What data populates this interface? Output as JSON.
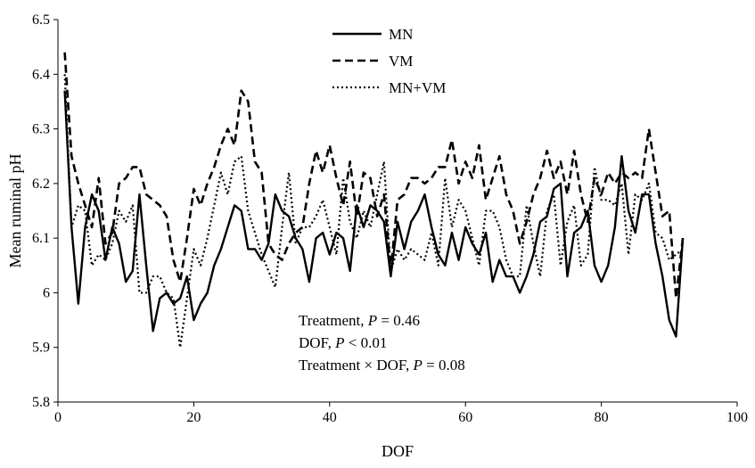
{
  "chart_data": {
    "type": "line",
    "title": "",
    "xlabel": "DOF",
    "ylabel": "Mean ruminal pH",
    "xlim": [
      0,
      100
    ],
    "ylim": [
      5.8,
      6.5
    ],
    "xticks": [
      0,
      20,
      40,
      60,
      80,
      100
    ],
    "yticks": [
      5.8,
      5.9,
      6,
      6.1,
      6.2,
      6.3,
      6.4,
      6.5
    ],
    "xtick_labels": [
      "0",
      "20",
      "40",
      "60",
      "80",
      "100"
    ],
    "ytick_labels": [
      "5.8",
      "5.9",
      "6",
      "6.1",
      "6.2",
      "6.3",
      "6.4",
      "6.5"
    ],
    "grid": false,
    "legend_position": "top-center",
    "x": [
      1,
      2,
      3,
      4,
      5,
      6,
      7,
      8,
      9,
      10,
      11,
      12,
      13,
      14,
      15,
      16,
      17,
      18,
      19,
      20,
      21,
      22,
      23,
      24,
      25,
      26,
      27,
      28,
      29,
      30,
      31,
      32,
      33,
      34,
      35,
      36,
      37,
      38,
      39,
      40,
      41,
      42,
      43,
      44,
      45,
      46,
      47,
      48,
      49,
      50,
      51,
      52,
      53,
      54,
      55,
      56,
      57,
      58,
      59,
      60,
      61,
      62,
      63,
      64,
      65,
      66,
      67,
      68,
      69,
      70,
      71,
      72,
      73,
      74,
      75,
      76,
      77,
      78,
      79,
      80,
      81,
      82,
      83,
      84,
      85,
      86,
      87,
      88,
      89,
      90,
      91,
      92
    ],
    "series": [
      {
        "name": "MN",
        "line_style": "solid",
        "values": [
          6.37,
          6.12,
          5.98,
          6.12,
          6.18,
          6.15,
          6.06,
          6.12,
          6.09,
          6.02,
          6.04,
          6.18,
          6.05,
          5.93,
          5.99,
          6.0,
          5.98,
          5.99,
          6.03,
          5.95,
          5.98,
          6.0,
          6.05,
          6.08,
          6.12,
          6.16,
          6.15,
          6.08,
          6.08,
          6.06,
          6.09,
          6.18,
          6.15,
          6.14,
          6.1,
          6.08,
          6.02,
          6.1,
          6.11,
          6.07,
          6.11,
          6.1,
          6.04,
          6.16,
          6.12,
          6.16,
          6.15,
          6.13,
          6.03,
          6.13,
          6.08,
          6.13,
          6.15,
          6.18,
          6.12,
          6.07,
          6.05,
          6.11,
          6.06,
          6.12,
          6.09,
          6.07,
          6.11,
          6.02,
          6.06,
          6.03,
          6.03,
          6.0,
          6.03,
          6.07,
          6.13,
          6.14,
          6.19,
          6.2,
          6.03,
          6.11,
          6.12,
          6.15,
          6.05,
          6.02,
          6.05,
          6.12,
          6.25,
          6.15,
          6.11,
          6.18,
          6.18,
          6.09,
          6.03,
          5.95,
          5.92,
          6.1
        ]
      },
      {
        "name": "VM",
        "line_style": "dashed",
        "values": [
          6.44,
          6.25,
          6.2,
          6.16,
          6.12,
          6.21,
          6.09,
          6.11,
          6.2,
          6.21,
          6.23,
          6.23,
          6.18,
          6.17,
          6.16,
          6.14,
          6.06,
          6.02,
          6.1,
          6.19,
          6.16,
          6.2,
          6.23,
          6.27,
          6.3,
          6.27,
          6.37,
          6.35,
          6.24,
          6.22,
          6.09,
          6.07,
          6.06,
          6.09,
          6.11,
          6.12,
          6.2,
          6.26,
          6.22,
          6.27,
          6.21,
          6.16,
          6.24,
          6.14,
          6.22,
          6.21,
          6.14,
          6.18,
          6.04,
          6.17,
          6.18,
          6.21,
          6.21,
          6.2,
          6.21,
          6.23,
          6.23,
          6.28,
          6.2,
          6.24,
          6.21,
          6.27,
          6.17,
          6.21,
          6.25,
          6.18,
          6.15,
          6.09,
          6.13,
          6.18,
          6.21,
          6.26,
          6.21,
          6.24,
          6.18,
          6.26,
          6.18,
          6.13,
          6.21,
          6.18,
          6.22,
          6.2,
          6.22,
          6.21,
          6.22,
          6.21,
          6.3,
          6.22,
          6.14,
          6.15,
          5.99,
          6.1
        ]
      },
      {
        "name": "MN+VM",
        "line_style": "dotted",
        "values": [
          6.4,
          6.12,
          6.16,
          6.15,
          6.05,
          6.07,
          6.06,
          6.09,
          6.15,
          6.13,
          6.16,
          6.0,
          6.0,
          6.03,
          6.03,
          6.0,
          5.99,
          5.9,
          5.99,
          6.08,
          6.05,
          6.1,
          6.16,
          6.22,
          6.18,
          6.24,
          6.25,
          6.15,
          6.11,
          6.07,
          6.04,
          6.01,
          6.12,
          6.22,
          6.09,
          6.12,
          6.12,
          6.14,
          6.17,
          6.12,
          6.07,
          6.21,
          6.13,
          6.1,
          6.15,
          6.12,
          6.18,
          6.24,
          6.04,
          6.08,
          6.06,
          6.08,
          6.07,
          6.06,
          6.11,
          6.05,
          6.21,
          6.12,
          6.17,
          6.15,
          6.1,
          6.05,
          6.15,
          6.15,
          6.12,
          6.06,
          6.03,
          6.03,
          6.16,
          6.09,
          6.03,
          6.15,
          6.18,
          6.05,
          6.13,
          6.16,
          6.05,
          6.07,
          6.23,
          6.17,
          6.17,
          6.16,
          6.2,
          6.07,
          6.18,
          6.17,
          6.2,
          6.11,
          6.1,
          6.06,
          6.07,
          6.08
        ]
      }
    ],
    "annotations": [
      {
        "pre": "Treatment, ",
        "italic": "P",
        "post": " = 0.46"
      },
      {
        "pre": "DOF, ",
        "italic": "P",
        "post": " < 0.01"
      },
      {
        "pre": "Treatment × DOF, ",
        "italic": "P",
        "post": " = 0.08"
      }
    ]
  }
}
